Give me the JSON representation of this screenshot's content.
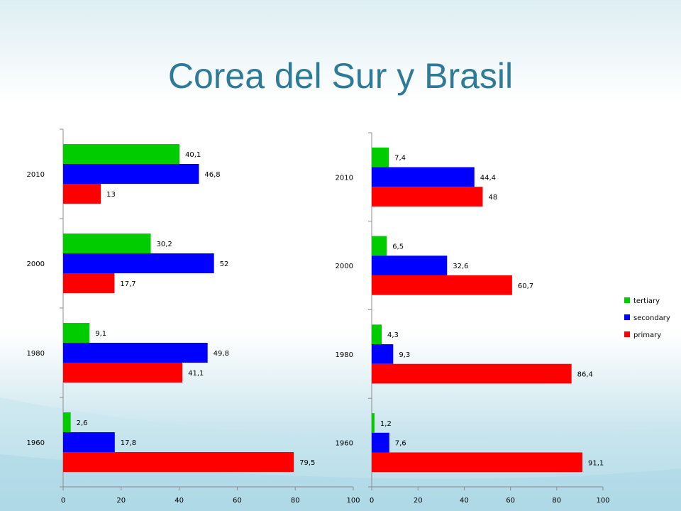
{
  "title": "Corea del Sur y Brasil",
  "colors": {
    "tertiary": "#00cc00",
    "secondary": "#0000ff",
    "primary": "#ff0000",
    "title": "#2e7a98"
  },
  "chart_data": [
    {
      "type": "bar",
      "orientation": "horizontal",
      "categories": [
        "1960",
        "1980",
        "2000",
        "2010"
      ],
      "xlim": [
        0,
        100
      ],
      "xticks": [
        "0",
        "20",
        "40",
        "60",
        "80",
        "100"
      ],
      "series": [
        {
          "name": "tertiary",
          "color": "#00cc00",
          "values": [
            2.6,
            9.1,
            30.2,
            40.1
          ],
          "labels": [
            "2,6",
            "9,1",
            "30,2",
            "40,1"
          ]
        },
        {
          "name": "secondary",
          "color": "#0000ff",
          "values": [
            17.8,
            49.8,
            52,
            46.8
          ],
          "labels": [
            "17,8",
            "49,8",
            "52",
            "46,8"
          ]
        },
        {
          "name": "primary",
          "color": "#ff0000",
          "values": [
            79.5,
            41.1,
            17.7,
            13
          ],
          "labels": [
            "79,5",
            "41,1",
            "17,7",
            "13"
          ]
        }
      ],
      "grid": false,
      "legend": "none"
    },
    {
      "type": "bar",
      "orientation": "horizontal",
      "categories": [
        "1960",
        "1980",
        "2000",
        "2010"
      ],
      "xlim": [
        0,
        100
      ],
      "xticks": [
        "0",
        "20",
        "40",
        "60",
        "80",
        "100"
      ],
      "series": [
        {
          "name": "tertiary",
          "color": "#00cc00",
          "values": [
            1.2,
            4.3,
            6.5,
            7.4
          ],
          "labels": [
            "1,2",
            "4,3",
            "6,5",
            "7,4"
          ]
        },
        {
          "name": "secondary",
          "color": "#0000ff",
          "values": [
            7.6,
            9.3,
            32.6,
            44.4
          ],
          "labels": [
            "7,6",
            "9,3",
            "32,6",
            "44,4"
          ]
        },
        {
          "name": "primary",
          "color": "#ff0000",
          "values": [
            91.1,
            86.4,
            60.7,
            48
          ],
          "labels": [
            "91,1",
            "86,4",
            "60,7",
            "48"
          ]
        }
      ],
      "grid": false,
      "legend": "right"
    }
  ]
}
